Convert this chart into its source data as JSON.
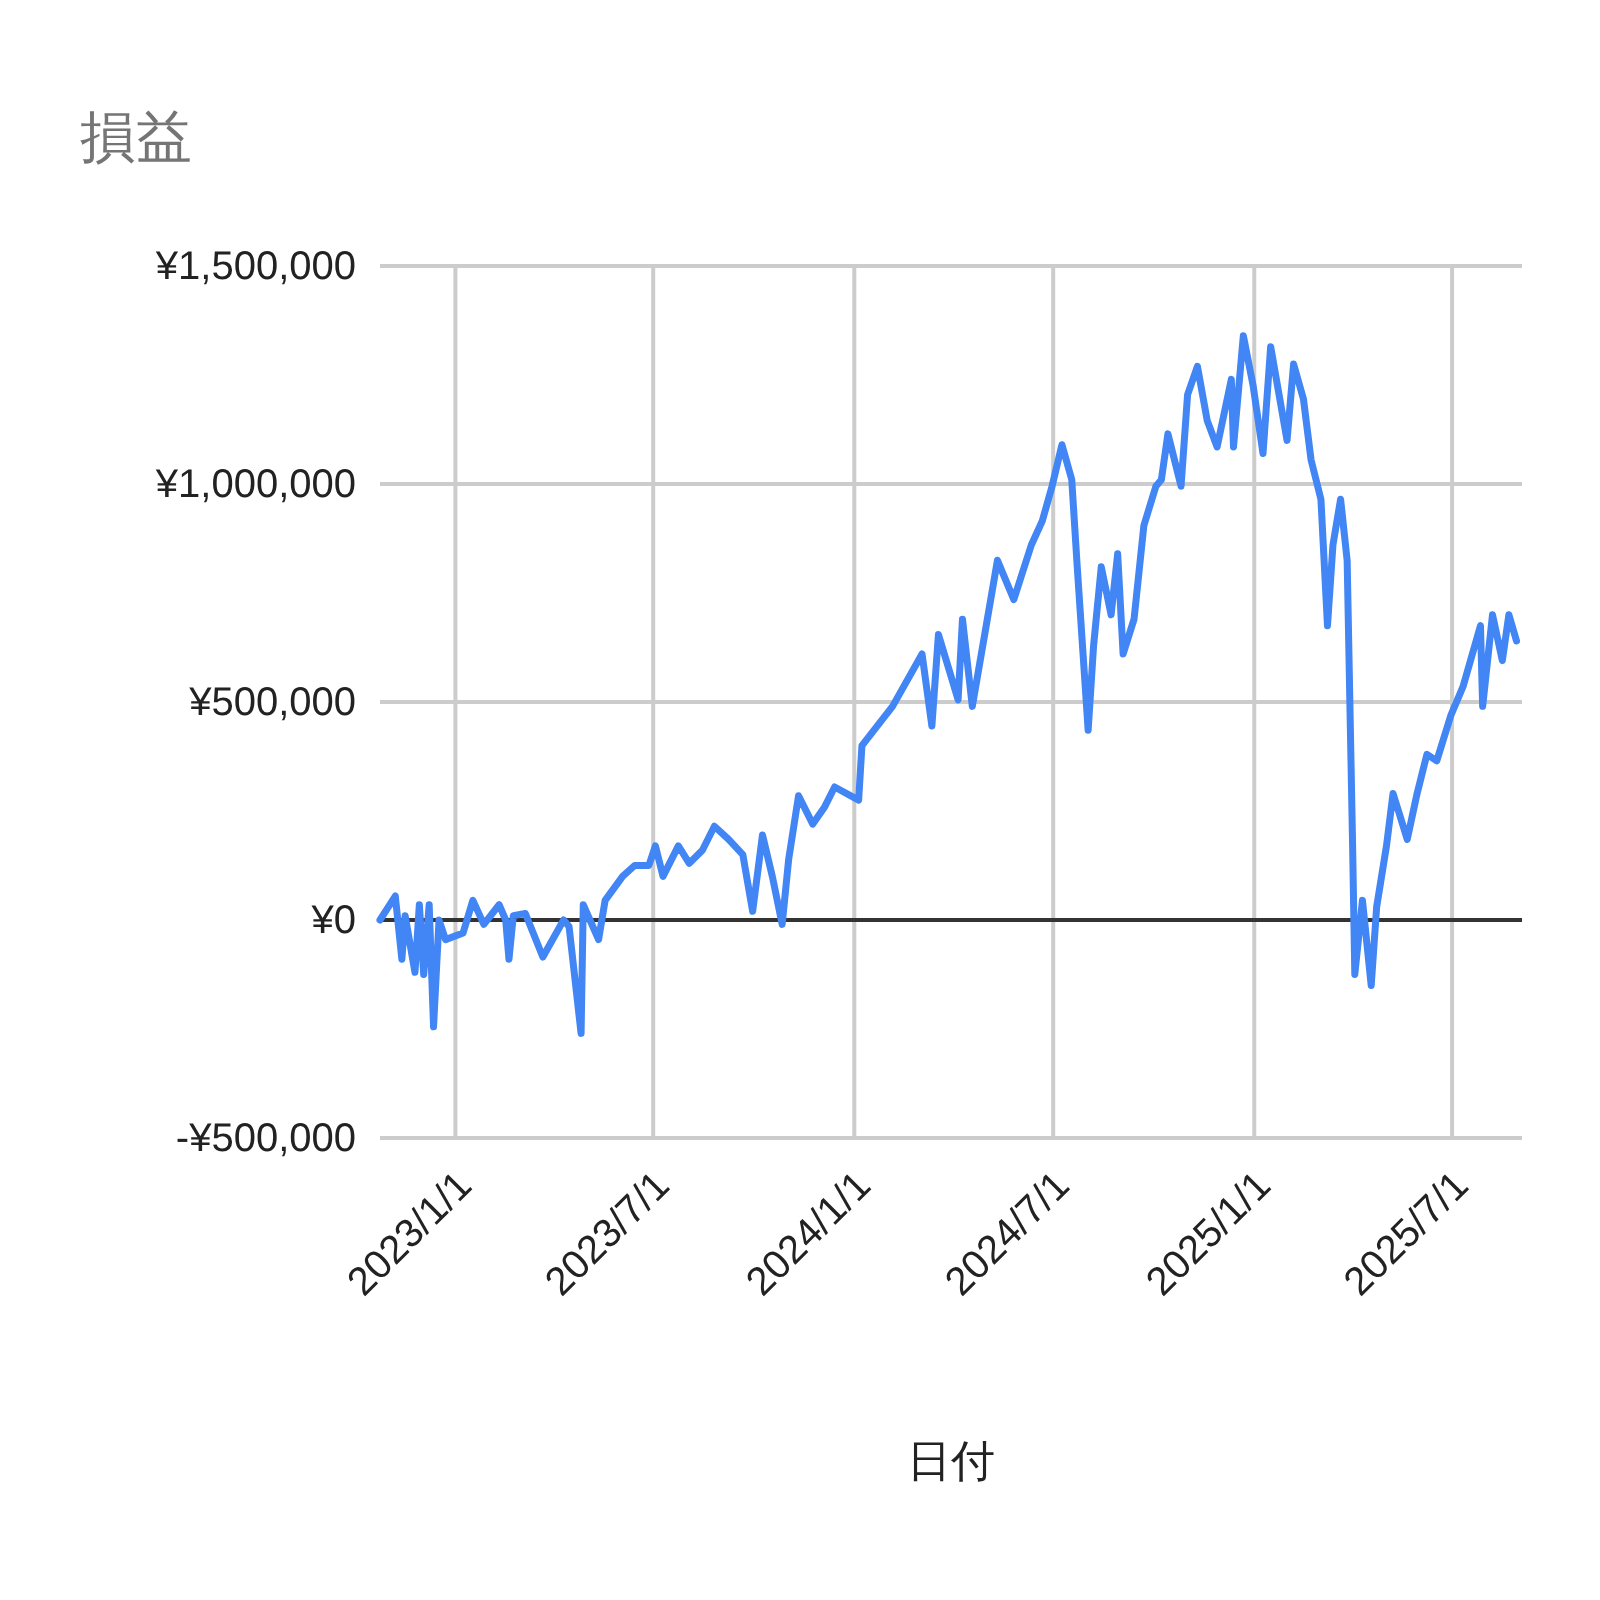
{
  "chart_data": {
    "type": "line",
    "title": "損益",
    "xlabel": "日付",
    "xlim": [
      "2022-10-24",
      "2025-09-03"
    ],
    "xticks": [
      {
        "value": "2023-01-01",
        "label": "2023/1/1"
      },
      {
        "value": "2023-07-01",
        "label": "2023/7/1"
      },
      {
        "value": "2024-01-01",
        "label": "2024/1/1"
      },
      {
        "value": "2024-07-01",
        "label": "2024/7/1"
      },
      {
        "value": "2025-01-01",
        "label": "2025/1/1"
      },
      {
        "value": "2025-07-01",
        "label": "2025/7/1"
      }
    ],
    "ylim": [
      -500000,
      1500000
    ],
    "yticks": [
      {
        "value": -500000,
        "label": "-¥500,000"
      },
      {
        "value": 0,
        "label": "¥0"
      },
      {
        "value": 500000,
        "label": "¥500,000"
      },
      {
        "value": 1000000,
        "label": "¥1,000,000"
      },
      {
        "value": 1500000,
        "label": "¥1,500,000"
      }
    ],
    "grid": true,
    "marker": "none",
    "line_style": "solid",
    "series": [
      {
        "color": "#4285f4",
        "x": [
          "2022-10-24",
          "2022-11-07",
          "2022-11-13",
          "2022-11-16",
          "2022-11-25",
          "2022-11-29",
          "2022-12-03",
          "2022-12-08",
          "2022-12-12",
          "2022-12-17",
          "2022-12-23",
          "2023-01-08",
          "2023-01-17",
          "2023-01-27",
          "2023-02-10",
          "2023-02-16",
          "2023-02-19",
          "2023-02-23",
          "2023-03-06",
          "2023-03-22",
          "2023-04-10",
          "2023-04-15",
          "2023-04-26",
          "2023-04-28",
          "2023-05-12",
          "2023-05-18",
          "2023-06-03",
          "2023-06-14",
          "2023-06-27",
          "2023-07-03",
          "2023-07-10",
          "2023-07-24",
          "2023-08-03",
          "2023-08-15",
          "2023-08-26",
          "2023-09-08",
          "2023-09-21",
          "2023-09-30",
          "2023-10-09",
          "2023-10-18",
          "2023-10-27",
          "2023-11-02",
          "2023-11-11",
          "2023-11-24",
          "2023-12-05",
          "2023-12-14",
          "2024-01-05",
          "2024-01-08",
          "2024-02-05",
          "2024-03-03",
          "2024-03-12",
          "2024-03-18",
          "2024-04-05",
          "2024-04-09",
          "2024-04-18",
          "2024-05-11",
          "2024-05-26",
          "2024-06-11",
          "2024-06-21",
          "2024-06-30",
          "2024-07-09",
          "2024-07-18",
          "2024-07-23",
          "2024-08-02",
          "2024-08-07",
          "2024-08-14",
          "2024-08-23",
          "2024-08-29",
          "2024-09-03",
          "2024-09-13",
          "2024-09-22",
          "2024-10-03",
          "2024-10-08",
          "2024-10-14",
          "2024-10-26",
          "2024-11-01",
          "2024-11-10",
          "2024-11-19",
          "2024-11-28",
          "2024-12-11",
          "2024-12-13",
          "2024-12-22",
          "2024-12-31",
          "2025-01-09",
          "2025-01-16",
          "2025-01-31",
          "2025-02-06",
          "2025-02-15",
          "2025-02-22",
          "2025-03-03",
          "2025-03-09",
          "2025-03-14",
          "2025-03-21",
          "2025-03-27",
          "2025-04-01",
          "2025-04-03",
          "2025-04-10",
          "2025-04-18",
          "2025-04-23",
          "2025-05-02",
          "2025-05-08",
          "2025-05-21",
          "2025-05-30",
          "2025-06-08",
          "2025-06-17",
          "2025-06-30",
          "2025-07-11",
          "2025-07-27",
          "2025-07-29",
          "2025-08-07",
          "2025-08-16",
          "2025-08-22",
          "2025-08-29"
        ],
        "values": [
          0,
          55000,
          -90000,
          10000,
          -120000,
          35000,
          -125000,
          35000,
          -245000,
          0,
          -45000,
          -30000,
          45000,
          -10000,
          35000,
          0,
          -90000,
          10000,
          15000,
          -85000,
          0,
          -15000,
          -260000,
          35000,
          -45000,
          45000,
          100000,
          125000,
          125000,
          170000,
          100000,
          170000,
          130000,
          160000,
          215000,
          185000,
          150000,
          20000,
          195000,
          100000,
          -10000,
          140000,
          285000,
          220000,
          260000,
          305000,
          275000,
          400000,
          490000,
          610000,
          445000,
          655000,
          505000,
          690000,
          490000,
          825000,
          735000,
          860000,
          915000,
          995000,
          1090000,
          1010000,
          810000,
          435000,
          630000,
          810000,
          700000,
          840000,
          610000,
          690000,
          905000,
          995000,
          1010000,
          1115000,
          995000,
          1205000,
          1270000,
          1145000,
          1085000,
          1240000,
          1085000,
          1340000,
          1225000,
          1070000,
          1315000,
          1100000,
          1275000,
          1195000,
          1055000,
          965000,
          675000,
          860000,
          965000,
          825000,
          170000,
          -125000,
          45000,
          -150000,
          30000,
          170000,
          290000,
          185000,
          290000,
          380000,
          365000,
          470000,
          535000,
          675000,
          490000,
          700000,
          595000,
          700000,
          640000
        ]
      }
    ]
  }
}
